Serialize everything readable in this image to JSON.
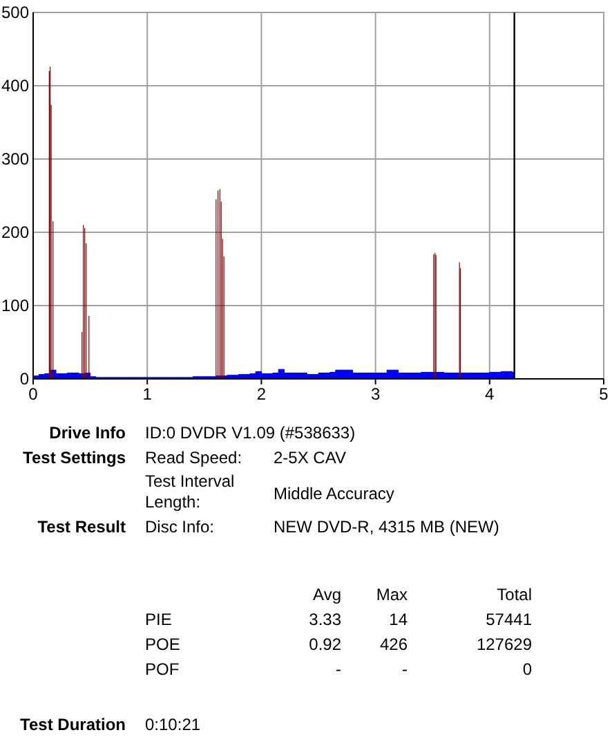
{
  "chart_data": {
    "type": "bar",
    "xlim": [
      0,
      5
    ],
    "ylim": [
      0,
      500
    ],
    "xticks": [
      0,
      1,
      2,
      3,
      4,
      5
    ],
    "yticks": [
      0,
      100,
      200,
      300,
      400,
      500
    ],
    "grid": true,
    "series": [
      {
        "type": "area",
        "color": "#0000ff",
        "x": [
          0,
          0.05,
          0.1,
          0.15,
          0.2,
          0.3,
          0.4,
          0.45,
          0.5,
          0.55,
          0.6,
          0.8,
          1.0,
          1.2,
          1.4,
          1.5,
          1.6,
          1.7,
          1.8,
          1.9,
          1.95,
          2.0,
          2.1,
          2.15,
          2.2,
          2.4,
          2.5,
          2.6,
          2.65,
          2.8,
          3.0,
          3.1,
          3.2,
          3.4,
          3.6,
          3.8,
          4.0,
          4.1,
          4.2,
          4.217
        ],
        "values": [
          4,
          6,
          7,
          12,
          7,
          8,
          7,
          8,
          3,
          2,
          2,
          2,
          2,
          2,
          3,
          3,
          4,
          5,
          6,
          7,
          10,
          7,
          8,
          13,
          8,
          6,
          8,
          9,
          12,
          8,
          8,
          12,
          8,
          9,
          8,
          8,
          9,
          10,
          9,
          9
        ]
      },
      {
        "color": "#800000",
        "x": [
          0.141,
          0.149,
          0.158,
          0.174,
          0.428,
          0.44,
          0.452,
          0.464,
          0.489,
          1.603,
          1.62,
          1.636,
          1.648,
          1.66,
          1.672,
          3.51,
          3.522,
          3.53,
          3.736,
          3.744
        ],
        "values": [
          420,
          426,
          374,
          215,
          64,
          210,
          206,
          185,
          86,
          245,
          257,
          259,
          242,
          191,
          167,
          170,
          172,
          169,
          159,
          151
        ]
      }
    ],
    "ref_lines": [
      {
        "axis": "x",
        "value": 4.217,
        "color": "#000000"
      }
    ],
    "annotations": [
      "Drive Info",
      "ID:0 DVDR V1.09 (#538633)",
      "Test Settings",
      "Read Speed:",
      "2-5X CAV",
      "Test Interval Length:",
      "Middle Accuracy",
      "Test Result",
      "Disc Info:",
      "NEW DVD-R, 4315 MB (NEW)",
      "Avg",
      "Max",
      "Total",
      "PIE",
      "3.33",
      "14",
      "57441",
      "POE",
      "0.92",
      "426",
      "127629",
      "POF",
      "-",
      "-",
      "0",
      "Test Duration",
      "0:10:21"
    ]
  }
}
